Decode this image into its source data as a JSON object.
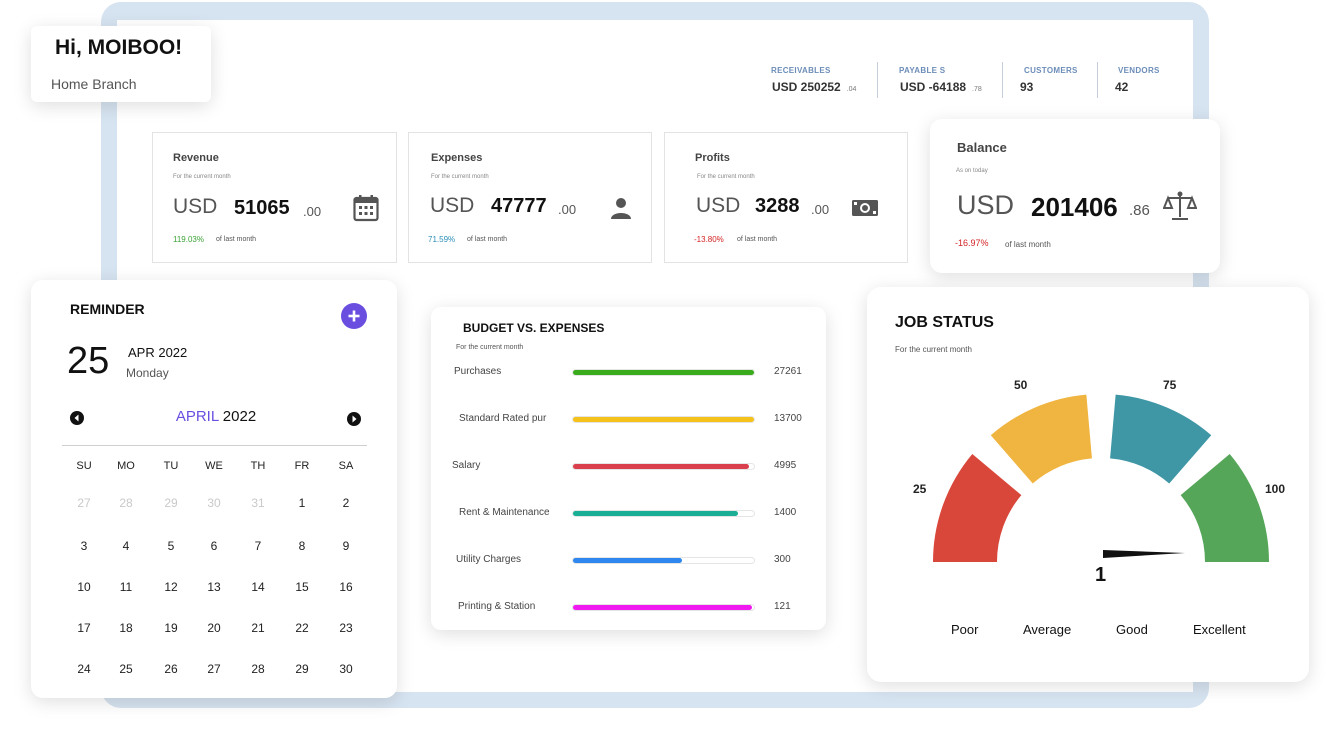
{
  "greeting": {
    "title": "Hi, MOIBOO!",
    "branch": "Home Branch"
  },
  "summary": [
    {
      "label": "RECEIVABLES",
      "value": "USD 250252",
      "decimal": ".04"
    },
    {
      "label": "PAYABLE S",
      "value": "USD -64188",
      "decimal": ".78"
    },
    {
      "label": "CUSTOMERS",
      "value": "93",
      "decimal": ""
    },
    {
      "label": "VENDORS",
      "value": "42",
      "decimal": ""
    }
  ],
  "metrics": {
    "revenue": {
      "title": "Revenue",
      "subtitle": "For the current month",
      "currency": "USD",
      "value": "51065",
      "decimal": ".00",
      "change": "119.03%",
      "change_color": "#3aa335",
      "of": "of last month",
      "icon": "calendar-icon"
    },
    "expenses": {
      "title": "Expenses",
      "subtitle": "For the current month",
      "currency": "USD",
      "value": "47777",
      "decimal": ".00",
      "change": "71.59%",
      "change_color": "#2d8fb8",
      "of": "of last month",
      "icon": "person-icon"
    },
    "profits": {
      "title": "Profits",
      "subtitle": "For the current month",
      "currency": "USD",
      "value": "3288",
      "decimal": ".00",
      "change": "-13.80%",
      "change_color": "#d32222",
      "of": "of last month",
      "icon": "cash-icon"
    },
    "balance": {
      "title": "Balance",
      "subtitle": "As on today",
      "currency": "USD",
      "value": "201406",
      "decimal": ".86",
      "change": "-16.97%",
      "change_color": "#d32222",
      "of": "of last month",
      "icon": "scale-icon"
    }
  },
  "reminder": {
    "title": "REMINDER",
    "day": "25",
    "month_year": "APR 2022",
    "weekday": "Monday",
    "calendar_month": "APRIL",
    "calendar_year": "2022",
    "accent": "#6a4ee0",
    "weekdays": [
      "SU",
      "MO",
      "TU",
      "WE",
      "TH",
      "FR",
      "SA"
    ],
    "weeks": [
      [
        {
          "d": "27",
          "m": true
        },
        {
          "d": "28",
          "m": true
        },
        {
          "d": "29",
          "m": true
        },
        {
          "d": "30",
          "m": true
        },
        {
          "d": "31",
          "m": true
        },
        {
          "d": "1",
          "m": false
        },
        {
          "d": "2",
          "m": false
        }
      ],
      [
        {
          "d": "3",
          "m": false
        },
        {
          "d": "4",
          "m": false
        },
        {
          "d": "5",
          "m": false
        },
        {
          "d": "6",
          "m": false
        },
        {
          "d": "7",
          "m": false
        },
        {
          "d": "8",
          "m": false
        },
        {
          "d": "9",
          "m": false
        }
      ],
      [
        {
          "d": "10",
          "m": false
        },
        {
          "d": "11",
          "m": false
        },
        {
          "d": "12",
          "m": false
        },
        {
          "d": "13",
          "m": false
        },
        {
          "d": "14",
          "m": false
        },
        {
          "d": "15",
          "m": false
        },
        {
          "d": "16",
          "m": false
        }
      ],
      [
        {
          "d": "17",
          "m": false
        },
        {
          "d": "18",
          "m": false
        },
        {
          "d": "19",
          "m": false
        },
        {
          "d": "20",
          "m": false
        },
        {
          "d": "21",
          "m": false
        },
        {
          "d": "22",
          "m": false
        },
        {
          "d": "23",
          "m": false
        }
      ],
      [
        {
          "d": "24",
          "m": false
        },
        {
          "d": "25",
          "m": false
        },
        {
          "d": "26",
          "m": false
        },
        {
          "d": "27",
          "m": false
        },
        {
          "d": "28",
          "m": false
        },
        {
          "d": "29",
          "m": false
        },
        {
          "d": "30",
          "m": false
        }
      ]
    ]
  },
  "budget": {
    "title": "BUDGET VS. EXPENSES",
    "subtitle": "For the current month",
    "items": [
      {
        "name": "Purchases",
        "value": "27261",
        "fill": 1.0,
        "color": "#3aab1d"
      },
      {
        "name": "Standard Rated pur",
        "value": "13700",
        "fill": 1.0,
        "color": "#f4c21a"
      },
      {
        "name": "Salary",
        "value": "4995",
        "fill": 0.97,
        "color": "#d93f4c"
      },
      {
        "name": "Rent & Maintenance",
        "value": "1400",
        "fill": 0.91,
        "color": "#1aaf95"
      },
      {
        "name": "Utility Charges",
        "value": "300",
        "fill": 0.6,
        "color": "#2d87ee"
      },
      {
        "name": "Printing & Station",
        "value": "121",
        "fill": 0.99,
        "color": "#f01af0"
      }
    ]
  },
  "job_status": {
    "title": "JOB STATUS",
    "subtitle": "For the current month",
    "value": "1",
    "ticks": [
      "25",
      "50",
      "75",
      "100"
    ],
    "categories": [
      "Poor",
      "Average",
      "Good",
      "Excellent"
    ],
    "colors": [
      "#d9473a",
      "#f0b540",
      "#3f97a6",
      "#56a65a"
    ]
  }
}
